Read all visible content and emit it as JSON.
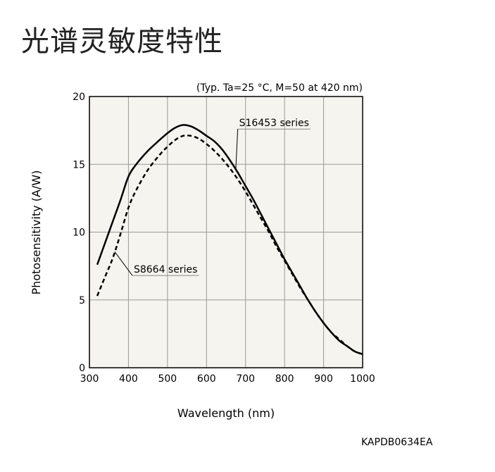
{
  "page": {
    "title": "光谱灵敏度特性",
    "doc_code": "KAPDB0634EA"
  },
  "colors": {
    "plot_background": "#f5f4ee",
    "grid": "#999999",
    "line": "#000000"
  },
  "chart_data": {
    "type": "line",
    "title": "",
    "subtitle": "(Typ. Ta=25 °C, M=50 at 420 nm)",
    "xlabel": "Wavelength (nm)",
    "ylabel": "Photosensitivity (A/W)",
    "xlim": [
      300,
      1000
    ],
    "ylim": [
      0,
      20
    ],
    "xticks": [
      300,
      400,
      500,
      600,
      700,
      800,
      900,
      1000
    ],
    "yticks": [
      0,
      5,
      10,
      15,
      20
    ],
    "grid": true,
    "legend": "none",
    "series": [
      {
        "name": "S16453 series",
        "style": "solid",
        "x": [
          320,
          340,
          360,
          380,
          400,
          420,
          450,
          480,
          500,
          520,
          540,
          560,
          580,
          600,
          620,
          640,
          660,
          680,
          700,
          720,
          740,
          760,
          780,
          800,
          820,
          840,
          860,
          880,
          900,
          920,
          940,
          960,
          980,
          1000
        ],
        "y": [
          7.6,
          9.2,
          10.8,
          12.4,
          14.1,
          15.0,
          16.0,
          16.8,
          17.3,
          17.7,
          17.9,
          17.8,
          17.5,
          17.1,
          16.7,
          16.1,
          15.3,
          14.4,
          13.4,
          12.4,
          11.3,
          10.2,
          9.1,
          8.0,
          7.0,
          6.0,
          5.0,
          4.1,
          3.3,
          2.6,
          2.0,
          1.6,
          1.2,
          1.0
        ]
      },
      {
        "name": "S8664 series",
        "style": "dashed",
        "x": [
          320,
          340,
          360,
          380,
          400,
          420,
          450,
          480,
          500,
          520,
          540,
          560,
          580,
          600,
          620,
          640,
          660,
          680,
          700,
          720,
          740,
          760,
          780,
          800,
          820,
          840,
          860,
          880,
          900,
          920,
          940,
          960,
          980,
          1000
        ],
        "y": [
          5.3,
          6.7,
          8.1,
          9.9,
          11.8,
          13.1,
          14.6,
          15.7,
          16.3,
          16.8,
          17.1,
          17.1,
          16.9,
          16.5,
          16.0,
          15.4,
          14.7,
          13.9,
          13.0,
          12.0,
          11.0,
          10.0,
          8.9,
          7.9,
          6.9,
          5.9,
          5.0,
          4.1,
          3.3,
          2.6,
          2.1,
          1.6,
          1.2,
          1.0
        ]
      }
    ],
    "annotations": [
      {
        "text": "S16453 series",
        "series": "S16453 series",
        "at_x": 675,
        "label_x": 680,
        "label_y": 17.6
      },
      {
        "text": "S8664 series",
        "series": "S8664 series",
        "at_x": 365,
        "label_x": 410,
        "label_y": 6.8
      }
    ]
  }
}
